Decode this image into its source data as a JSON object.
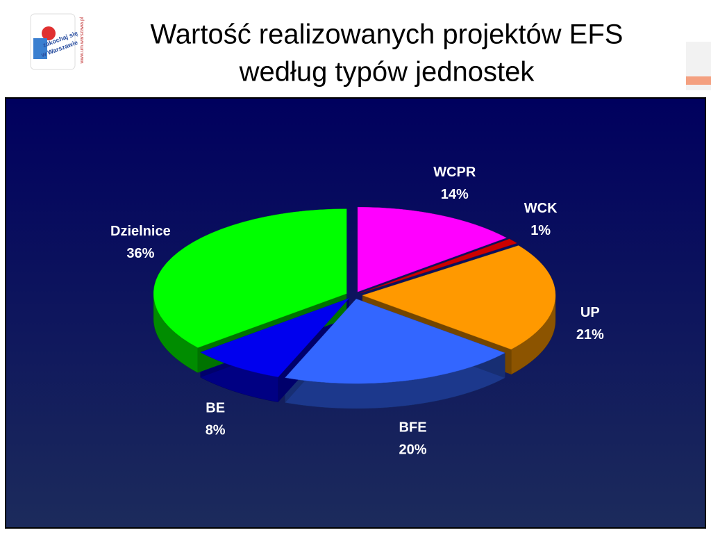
{
  "logo": {
    "line1": "zakochaj się",
    "line2": "w Warszawie",
    "url": "www.um.warszawa.pl"
  },
  "chart_data": {
    "type": "pie",
    "title": [
      "Wartość realizowanych projektów EFS",
      "według typów jednostek"
    ],
    "categories": [
      "WCPR",
      "WCK",
      "UP",
      "BFE",
      "BE",
      "Dzielnice"
    ],
    "values": [
      14,
      1,
      21,
      20,
      8,
      36
    ],
    "value_labels": [
      "14%",
      "1%",
      "21%",
      "20%",
      "8%",
      "36%"
    ],
    "colors": [
      "#ff00ff",
      "#cc0000",
      "#ff9900",
      "#3366ff",
      "#0000ee",
      "#00ff00"
    ]
  }
}
